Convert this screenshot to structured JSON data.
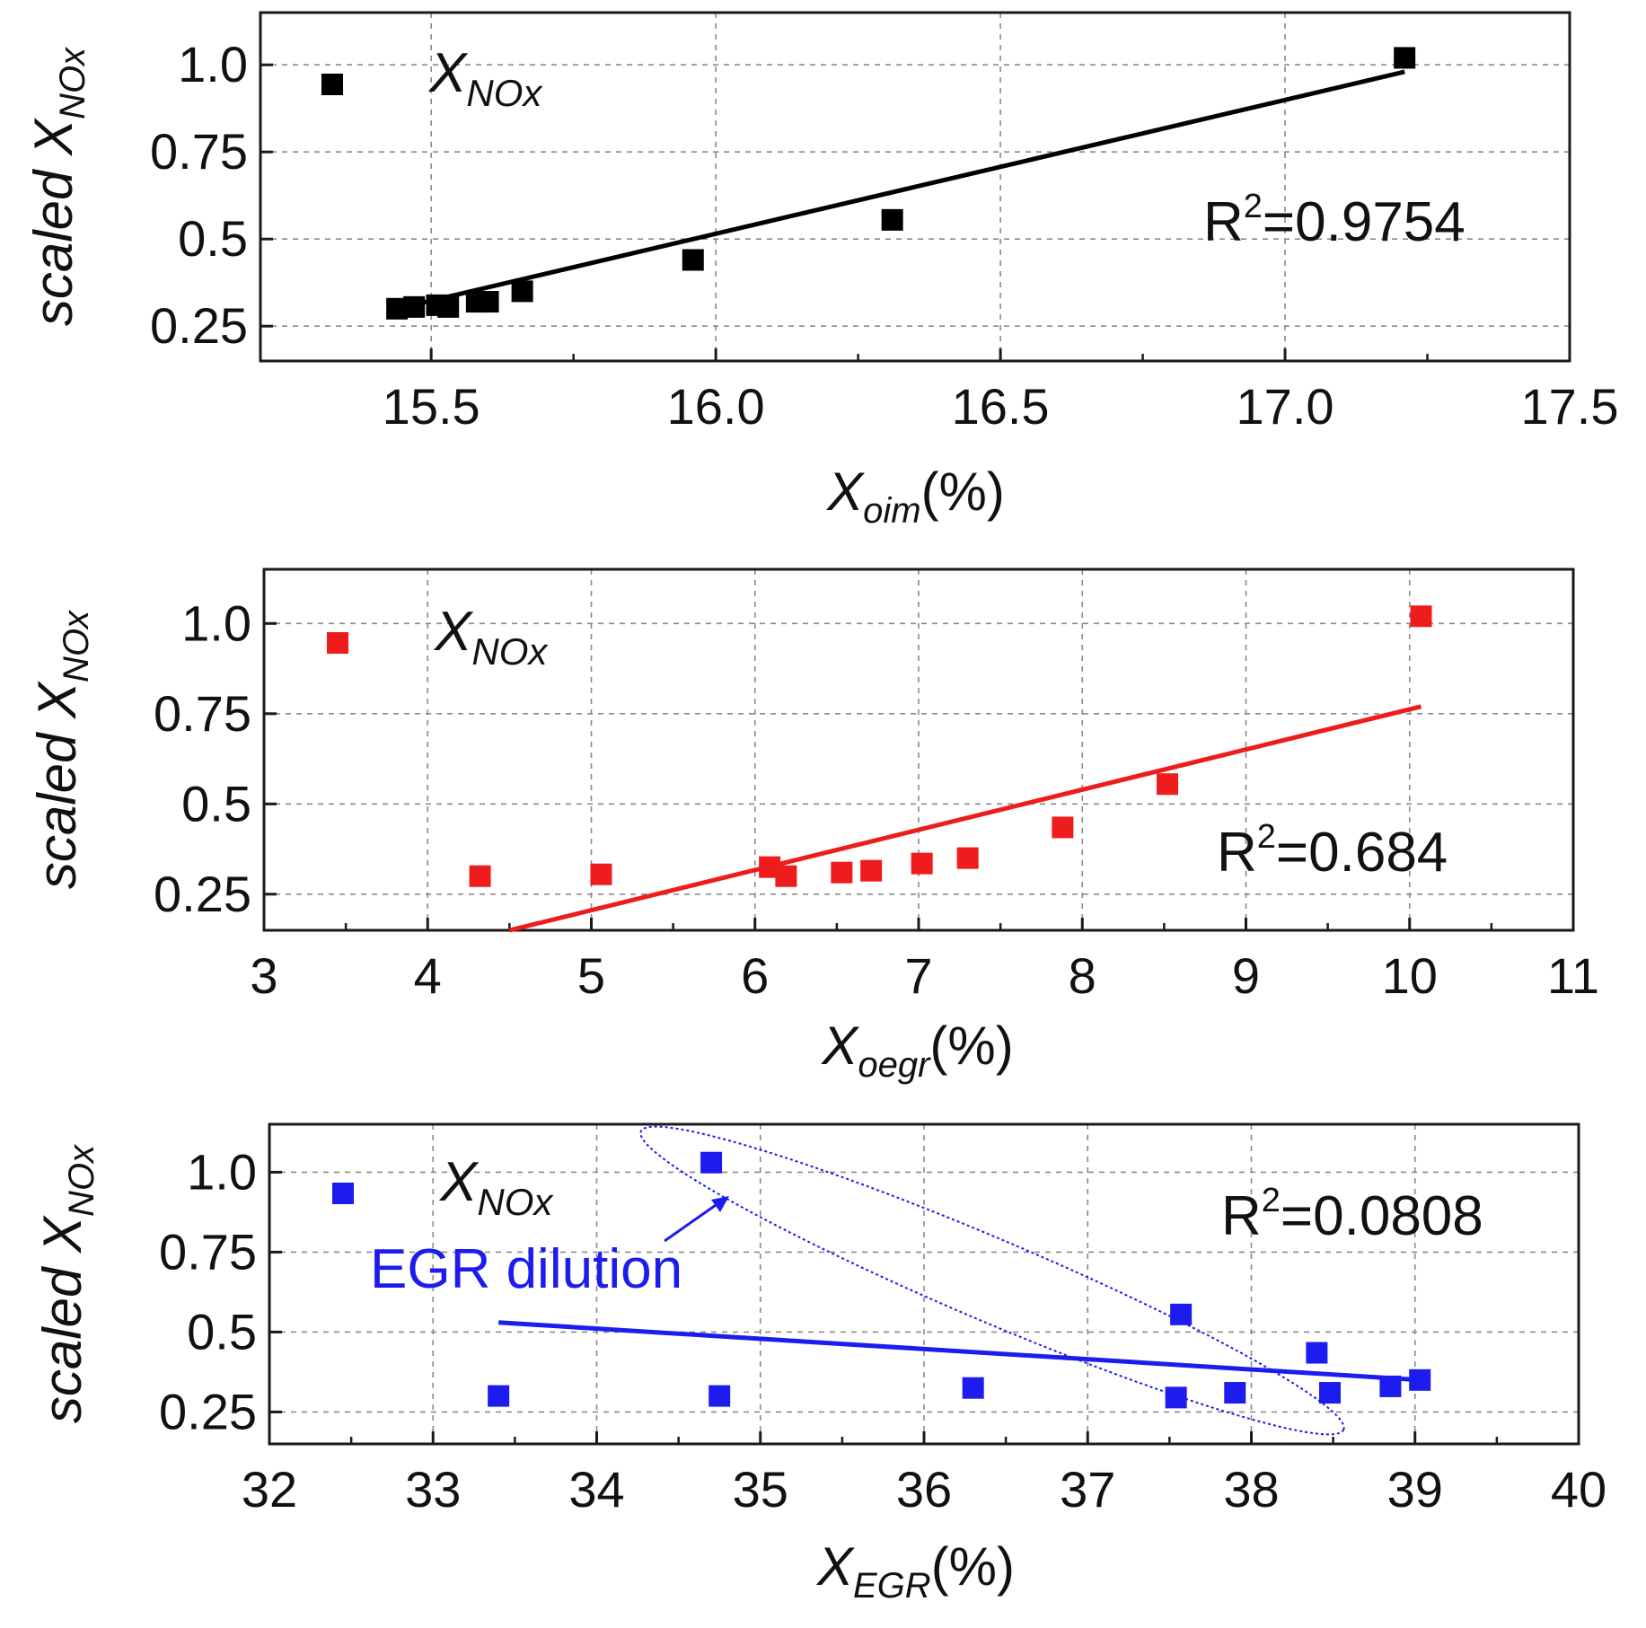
{
  "chart_data": [
    {
      "type": "scatter",
      "title": "",
      "xlabel": "X_oim(%)",
      "xlabel_main": "X",
      "xlabel_sub": "oim",
      "xlabel_unit": "(%)",
      "ylabel": "scaled X_NOx",
      "ylabel_main": "scaled X",
      "ylabel_sub": "NOx",
      "xlim": [
        15.2,
        17.5
      ],
      "ylim": [
        0.15,
        1.15
      ],
      "xticks": [
        15.5,
        16.0,
        16.5,
        17.0,
        17.5
      ],
      "xtick_labels": [
        "15.5",
        "16.0",
        "16.5",
        "17.0",
        "17.5"
      ],
      "yticks": [
        0.25,
        0.5,
        0.75,
        1.0
      ],
      "ytick_labels": [
        "0.25",
        "0.5",
        "0.75",
        "1.0"
      ],
      "grid": true,
      "color": "#000000",
      "legend": {
        "main": "X",
        "sub": "NOx"
      },
      "annotation": {
        "main": "R",
        "sup": "2",
        "rest": "=0.9754"
      },
      "points": {
        "x": [
          15.44,
          15.47,
          15.51,
          15.53,
          15.58,
          15.6,
          15.66,
          15.96,
          16.31,
          17.21
        ],
        "y": [
          0.3,
          0.305,
          0.31,
          0.305,
          0.32,
          0.32,
          0.35,
          0.44,
          0.555,
          1.02
        ]
      },
      "fit": {
        "x": [
          15.44,
          17.21
        ],
        "y": [
          0.3,
          0.98
        ]
      }
    },
    {
      "type": "scatter",
      "title": "",
      "xlabel": "X_oegr(%)",
      "xlabel_main": "X",
      "xlabel_sub": "oegr",
      "xlabel_unit": "(%)",
      "ylabel": "scaled X_NOx",
      "ylabel_main": "scaled X",
      "ylabel_sub": "NOx",
      "xlim": [
        3,
        11
      ],
      "ylim": [
        0.15,
        1.15
      ],
      "xticks": [
        3,
        4,
        5,
        6,
        7,
        8,
        9,
        10,
        11
      ],
      "xtick_labels": [
        "3",
        "4",
        "5",
        "6",
        "7",
        "8",
        "9",
        "10",
        "11"
      ],
      "yticks": [
        0.25,
        0.5,
        0.75,
        1.0
      ],
      "ytick_labels": [
        "0.25",
        "0.5",
        "0.75",
        "1.0"
      ],
      "grid": true,
      "color": "#ee1c1c",
      "legend": {
        "main": "X",
        "sub": "NOx"
      },
      "annotation": {
        "main": "R",
        "sup": "2",
        "rest": "=0.684"
      },
      "points": {
        "x": [
          4.32,
          5.06,
          6.09,
          6.19,
          6.53,
          6.71,
          7.02,
          7.3,
          7.88,
          8.52,
          10.07
        ],
        "y": [
          0.3,
          0.305,
          0.325,
          0.3,
          0.31,
          0.315,
          0.335,
          0.35,
          0.435,
          0.555,
          1.02
        ]
      },
      "fit": {
        "x": [
          4.5,
          10.07
        ],
        "y": [
          0.15,
          0.77
        ]
      }
    },
    {
      "type": "scatter",
      "title": "",
      "xlabel": "X_EGR(%)",
      "xlabel_main": "X",
      "xlabel_sub": "EGR",
      "xlabel_unit": "(%)",
      "ylabel": "scaled X_NOx",
      "ylabel_main": "scaled X",
      "ylabel_sub": "NOx",
      "xlim": [
        32,
        40
      ],
      "ylim": [
        0.15,
        1.15
      ],
      "xticks": [
        32,
        33,
        34,
        35,
        36,
        37,
        38,
        39,
        40
      ],
      "xtick_labels": [
        "32",
        "33",
        "34",
        "35",
        "36",
        "37",
        "38",
        "39",
        "40"
      ],
      "yticks": [
        0.25,
        0.5,
        0.75,
        1.0
      ],
      "ytick_labels": [
        "0.25",
        "0.5",
        "0.75",
        "1.0"
      ],
      "grid": true,
      "color": "#1c1cee",
      "legend": {
        "main": "X",
        "sub": "NOx"
      },
      "annotation": {
        "main": "R",
        "sup": "2",
        "rest": "=0.0808"
      },
      "extra_annotation": "EGR dilution",
      "points": {
        "x": [
          33.4,
          34.7,
          34.75,
          36.3,
          37.54,
          37.57,
          37.9,
          38.4,
          38.48,
          38.85,
          39.03
        ],
        "y": [
          0.3,
          1.03,
          0.3,
          0.325,
          0.295,
          0.555,
          0.31,
          0.435,
          0.31,
          0.33,
          0.35
        ]
      },
      "fit": {
        "x": [
          33.4,
          39.03
        ],
        "y": [
          0.53,
          0.35
        ]
      }
    }
  ]
}
